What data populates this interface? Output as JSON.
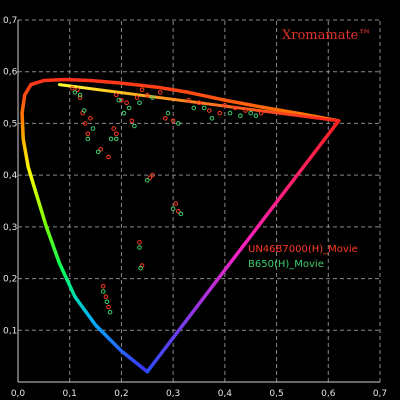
{
  "chart_data": {
    "type": "scatter",
    "title": "",
    "xlabel": "",
    "ylabel": "",
    "xlim": [
      0,
      0.7
    ],
    "ylim": [
      0,
      0.7
    ],
    "grid": true,
    "x_ticks": [
      "0,0",
      "0,1",
      "0,2",
      "0,3",
      "0,4",
      "0,5",
      "0,6",
      "0,7"
    ],
    "y_ticks": [
      "0,1",
      "0,2",
      "0,3",
      "0,4",
      "0,5",
      "0,6",
      "0,7"
    ],
    "watermark": "Xromamate™",
    "legend_position": "right",
    "triangle": {
      "colors": {
        "red_vertex": "#ff2020",
        "blue_vertex": "#2a4bff",
        "green_side": "#ffff30"
      },
      "points": [
        [
          0.62,
          0.505
        ],
        [
          0.25,
          0.02
        ],
        [
          0.08,
          0.575
        ]
      ]
    },
    "locus_colors": [
      "#4030ff",
      "#00b0ff",
      "#00ff60",
      "#80ff00",
      "#ffff00",
      "#ff8000",
      "#ff2020"
    ],
    "locus": [
      [
        0.62,
        0.505
      ],
      [
        0.55,
        0.518
      ],
      [
        0.48,
        0.53
      ],
      [
        0.4,
        0.545
      ],
      [
        0.33,
        0.56
      ],
      [
        0.27,
        0.57
      ],
      [
        0.2,
        0.578
      ],
      [
        0.14,
        0.583
      ],
      [
        0.09,
        0.585
      ],
      [
        0.05,
        0.583
      ],
      [
        0.025,
        0.575
      ],
      [
        0.013,
        0.555
      ],
      [
        0.008,
        0.52
      ],
      [
        0.01,
        0.47
      ],
      [
        0.02,
        0.415
      ],
      [
        0.035,
        0.365
      ],
      [
        0.055,
        0.3
      ],
      [
        0.08,
        0.23
      ],
      [
        0.11,
        0.165
      ],
      [
        0.15,
        0.11
      ],
      [
        0.2,
        0.06
      ],
      [
        0.25,
        0.02
      ]
    ],
    "series": [
      {
        "name": "UN46B7000(H)_Movie",
        "color": "#ff3a20",
        "points": [
          [
            0.105,
            0.568
          ],
          [
            0.115,
            0.565
          ],
          [
            0.12,
            0.55
          ],
          [
            0.125,
            0.52
          ],
          [
            0.13,
            0.5
          ],
          [
            0.135,
            0.48
          ],
          [
            0.14,
            0.51
          ],
          [
            0.16,
            0.45
          ],
          [
            0.175,
            0.435
          ],
          [
            0.185,
            0.49
          ],
          [
            0.19,
            0.48
          ],
          [
            0.19,
            0.555
          ],
          [
            0.2,
            0.545
          ],
          [
            0.21,
            0.54
          ],
          [
            0.22,
            0.505
          ],
          [
            0.23,
            0.55
          ],
          [
            0.24,
            0.565
          ],
          [
            0.25,
            0.555
          ],
          [
            0.275,
            0.56
          ],
          [
            0.285,
            0.51
          ],
          [
            0.3,
            0.505
          ],
          [
            0.33,
            0.545
          ],
          [
            0.35,
            0.54
          ],
          [
            0.37,
            0.525
          ],
          [
            0.39,
            0.52
          ],
          [
            0.4,
            0.535
          ],
          [
            0.42,
            0.53
          ],
          [
            0.44,
            0.525
          ],
          [
            0.47,
            0.52
          ],
          [
            0.255,
            0.395
          ],
          [
            0.26,
            0.4
          ],
          [
            0.305,
            0.345
          ],
          [
            0.31,
            0.33
          ],
          [
            0.235,
            0.27
          ],
          [
            0.24,
            0.225
          ],
          [
            0.165,
            0.185
          ],
          [
            0.17,
            0.165
          ],
          [
            0.175,
            0.145
          ]
        ]
      },
      {
        "name": "B650(H)_Movie",
        "color": "#3ecf6e",
        "points": [
          [
            0.11,
            0.56
          ],
          [
            0.12,
            0.555
          ],
          [
            0.128,
            0.525
          ],
          [
            0.135,
            0.47
          ],
          [
            0.145,
            0.49
          ],
          [
            0.155,
            0.445
          ],
          [
            0.18,
            0.47
          ],
          [
            0.19,
            0.47
          ],
          [
            0.195,
            0.545
          ],
          [
            0.205,
            0.52
          ],
          [
            0.215,
            0.53
          ],
          [
            0.225,
            0.495
          ],
          [
            0.235,
            0.54
          ],
          [
            0.26,
            0.55
          ],
          [
            0.29,
            0.52
          ],
          [
            0.31,
            0.5
          ],
          [
            0.34,
            0.53
          ],
          [
            0.36,
            0.53
          ],
          [
            0.375,
            0.51
          ],
          [
            0.41,
            0.52
          ],
          [
            0.43,
            0.515
          ],
          [
            0.45,
            0.52
          ],
          [
            0.46,
            0.515
          ],
          [
            0.25,
            0.39
          ],
          [
            0.3,
            0.335
          ],
          [
            0.315,
            0.325
          ],
          [
            0.235,
            0.26
          ],
          [
            0.237,
            0.22
          ],
          [
            0.165,
            0.175
          ],
          [
            0.172,
            0.155
          ],
          [
            0.178,
            0.135
          ]
        ]
      }
    ]
  }
}
